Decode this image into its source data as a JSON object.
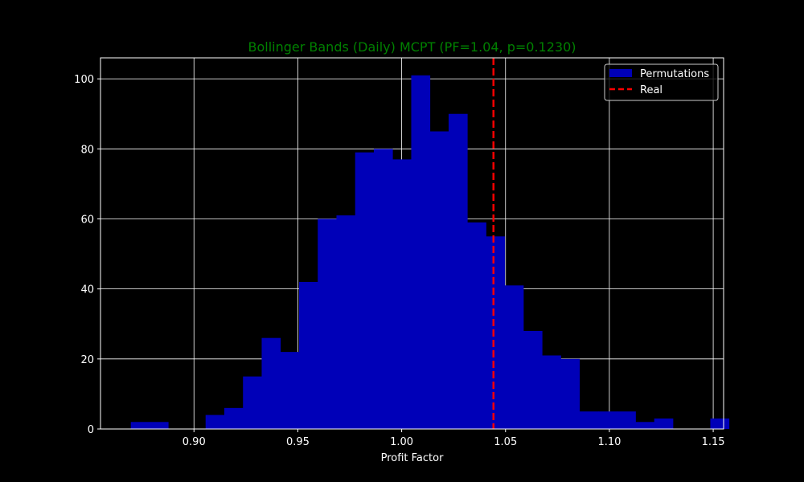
{
  "chart_data": {
    "type": "bar",
    "title": "Bollinger Bands (Daily) MCPT (PF=1.04, p=0.1230)",
    "xlabel": "Profit Factor",
    "ylabel": "",
    "xlim": [
      0.855,
      1.155
    ],
    "ylim": [
      0,
      106
    ],
    "grid": true,
    "legend_position": "top-right",
    "xticks": [
      0.9,
      0.95,
      1.0,
      1.05,
      1.1,
      1.15
    ],
    "xtick_labels": [
      "0.90",
      "0.95",
      "1.00",
      "1.05",
      "1.10",
      "1.15"
    ],
    "yticks": [
      0,
      20,
      40,
      60,
      80,
      100
    ],
    "ytick_labels": [
      "0",
      "20",
      "40",
      "60",
      "80",
      "100"
    ],
    "bin_start": 0.8696,
    "bin_width": 0.009,
    "series": [
      {
        "name": "Permutations",
        "kind": "histogram",
        "color": "#0000b8",
        "counts": [
          2,
          2,
          0,
          0,
          4,
          6,
          15,
          26,
          22,
          42,
          60,
          61,
          79,
          80,
          77,
          101,
          85,
          90,
          59,
          55,
          41,
          28,
          21,
          20,
          5,
          5,
          5,
          2,
          3,
          0,
          0,
          3
        ]
      },
      {
        "name": "Real",
        "kind": "vline",
        "x": 1.0442,
        "color": "#ff0000",
        "style": "dashed"
      }
    ],
    "colors": {
      "background": "#000000",
      "title": "#008000",
      "text": "#ffffff",
      "grid": "#ffffff"
    }
  }
}
